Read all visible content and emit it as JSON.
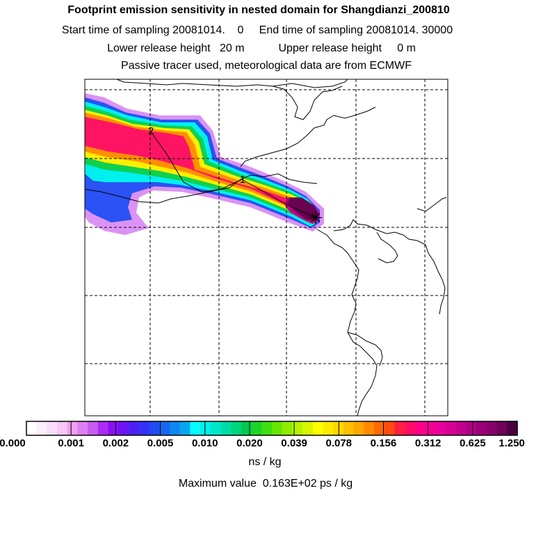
{
  "header": {
    "title": "Footprint emission sensitivity in nested domain for Shangdianzi_200810",
    "start_label": "Start time of sampling",
    "start_value": "20081014.",
    "start_hour": "0",
    "end_label": "End time of sampling",
    "end_value": "20081014. 30000",
    "lower_label": "Lower release height",
    "lower_value": "20 m",
    "upper_label": "Upper release height",
    "upper_value": "0 m",
    "tracer_note": "Passive tracer used, meteorological data are from ECMWF"
  },
  "map": {
    "station_marker_icon": "asterisk-icon",
    "plume_labels": [
      "1",
      "2"
    ]
  },
  "colorbar": {
    "ticks": [
      "0.000",
      "0.001",
      "0.002",
      "0.005",
      "0.010",
      "0.020",
      "0.039",
      "0.078",
      "0.156",
      "0.312",
      "0.625",
      "1.250"
    ],
    "colors": [
      "#ffffff",
      "#fdeefd",
      "#f9ddf9",
      "#f5c8f5",
      "#ef9fef",
      "#dc7ff0",
      "#c65cf2",
      "#ab2cf4",
      "#8a10f3",
      "#6b14f4",
      "#4e1ef5",
      "#3332f6",
      "#1f4bf4",
      "#1568f2",
      "#0f87f1",
      "#08a6ef",
      "#00ffff",
      "#00f0e8",
      "#00e6c8",
      "#00dca5",
      "#00d47c",
      "#00cc4f",
      "#1dd42a",
      "#3ddf10",
      "#66e600",
      "#90ec00",
      "#b6f200",
      "#d6f500",
      "#ffff00",
      "#ffeb00",
      "#ffd700",
      "#ffc000",
      "#ffa800",
      "#ff8a00",
      "#ff6a00",
      "#ff4a10",
      "#ff2040",
      "#ff0c66",
      "#ff0088",
      "#f70094",
      "#e8009c",
      "#d60096",
      "#c3008e",
      "#b00086",
      "#9a007a",
      "#86006b",
      "#700058",
      "#4a0040"
    ],
    "unit": "ns / kg",
    "max_label": "Maximum value",
    "max_value": "0.163E+02 ps / kg"
  },
  "colors": {
    "frame": "#000000",
    "grid": "#000000",
    "coast": "#000000"
  }
}
